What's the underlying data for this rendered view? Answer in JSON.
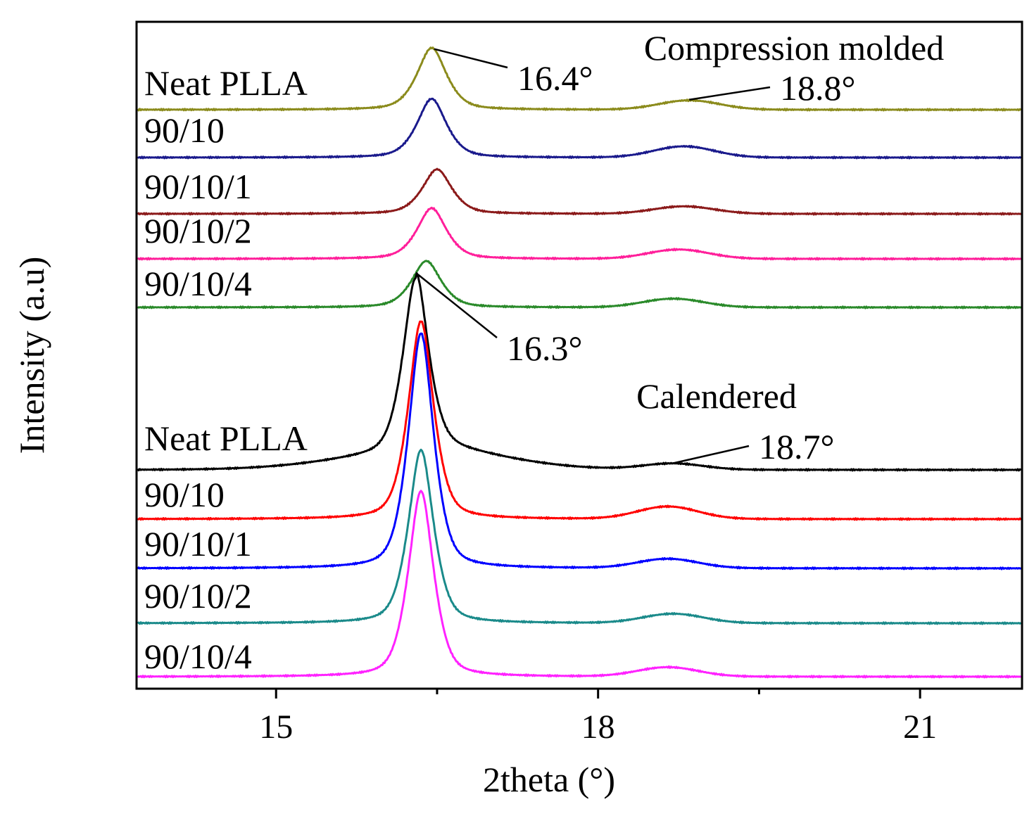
{
  "chart_data": {
    "type": "line",
    "xlabel": "2theta (°)",
    "ylabel": "Intensity (a.u)",
    "xlim": [
      13.7,
      21.95
    ],
    "x_ticks": [
      15,
      18,
      21
    ],
    "x_minor_ticks": [
      16.5,
      19.5
    ],
    "y_ticks_shown": false,
    "grid": false,
    "groups": [
      {
        "label": "Compression molded",
        "annotations": [
          {
            "text": "16.4°",
            "x": 16.4
          },
          {
            "text": "18.8°",
            "x": 18.8
          }
        ],
        "series": [
          {
            "name": "Neat PLLA",
            "color": "#8b8b1c",
            "peak_x": 16.45,
            "peak_height": 1.0,
            "peak2_x": 18.85,
            "peak2_height": 0.15
          },
          {
            "name": "90/10",
            "color": "#1a1a8c",
            "peak_x": 16.45,
            "peak_height": 0.95,
            "peak2_x": 18.8,
            "peak2_height": 0.18
          },
          {
            "name": "90/10/1",
            "color": "#8b1a1a",
            "peak_x": 16.5,
            "peak_height": 0.72,
            "peak2_x": 18.8,
            "peak2_height": 0.12
          },
          {
            "name": "90/10/2",
            "color": "#ff1f9a",
            "peak_x": 16.45,
            "peak_height": 0.82,
            "peak2_x": 18.75,
            "peak2_height": 0.15
          },
          {
            "name": "90/10/4",
            "color": "#2a8a2a",
            "peak_x": 16.4,
            "peak_height": 0.75,
            "peak2_x": 18.7,
            "peak2_height": 0.14
          }
        ]
      },
      {
        "label": "Calendered",
        "annotations": [
          {
            "text": "16.3°",
            "x": 16.3
          },
          {
            "text": "18.7°",
            "x": 18.7
          }
        ],
        "series": [
          {
            "name": "Neat PLLA",
            "color": "#000000",
            "peak_x": 16.3,
            "peak_height": 2.85,
            "peak2_x": 18.7,
            "peak2_height": 0.1
          },
          {
            "name": "90/10",
            "color": "#ff0000",
            "peak_x": 16.35,
            "peak_height": 3.2,
            "peak2_x": 18.65,
            "peak2_height": 0.2
          },
          {
            "name": "90/10/1",
            "color": "#0000ff",
            "peak_x": 16.35,
            "peak_height": 3.8,
            "peak2_x": 18.65,
            "peak2_height": 0.15
          },
          {
            "name": "90/10/2",
            "color": "#1a8a8a",
            "peak_x": 16.35,
            "peak_height": 2.8,
            "peak2_x": 18.7,
            "peak2_height": 0.15
          },
          {
            "name": "90/10/4",
            "color": "#ff22ff",
            "peak_x": 16.35,
            "peak_height": 3.0,
            "peak2_x": 18.65,
            "peak2_height": 0.15
          }
        ]
      }
    ]
  }
}
